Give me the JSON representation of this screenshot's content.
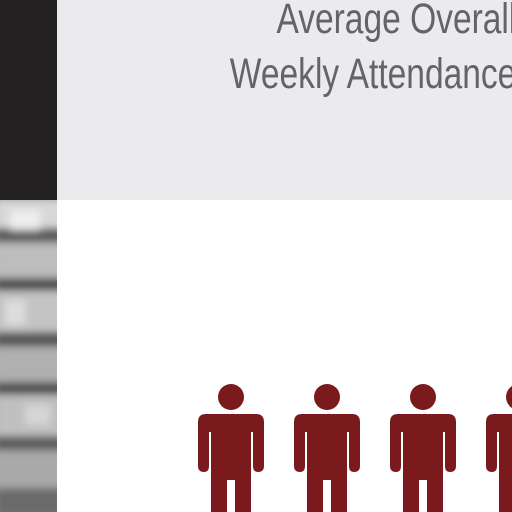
{
  "header": {
    "title_line_1": "Average Overall",
    "title_line_2": "Weekly Attendance"
  },
  "colors": {
    "dark_strip": "#222021",
    "header_bg": "#ebebed",
    "title_text": "#646466",
    "person_icon": "#7a1a1d"
  },
  "icons": {
    "person": "person-icon"
  },
  "people_count_visible": 4
}
